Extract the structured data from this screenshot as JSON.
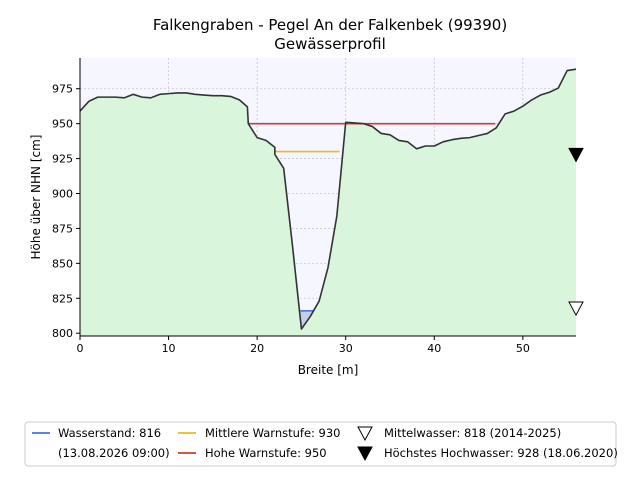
{
  "chart_data": {
    "type": "area",
    "title": "Falkengraben - Pegel An der Falkenbek (99390)",
    "subtitle": "Gewässerprofil",
    "xlabel": "Breite [m]",
    "ylabel": "Höhe über NHN [cm]",
    "xlim": [
      0,
      56
    ],
    "ylim": [
      798,
      997
    ],
    "xticks": [
      0,
      10,
      20,
      30,
      40,
      50
    ],
    "yticks": [
      800,
      825,
      850,
      875,
      900,
      925,
      950,
      975
    ],
    "grid": true,
    "colors": {
      "ground_fill": "#d9f5dc",
      "air_fill": "#f5f6ff",
      "profile_line": "#333333",
      "water_fill": "#c3ceee",
      "water_line": "#4a72d8",
      "warn_mid": "#f0b81a",
      "warn_high": "#d43a30"
    },
    "profile": {
      "x": [
        0,
        1,
        2,
        3,
        4,
        5,
        6,
        7,
        8,
        9,
        10,
        11,
        12,
        13,
        14,
        15,
        16,
        17,
        18,
        18.9,
        19,
        20,
        21,
        22,
        22,
        23,
        24,
        25,
        26,
        27,
        28,
        29,
        30,
        31,
        32,
        33,
        34,
        35,
        36,
        37,
        38,
        39,
        40,
        41,
        42,
        43,
        44,
        45,
        46,
        47,
        47.5,
        48,
        49,
        50,
        51,
        52,
        53,
        54,
        55,
        56
      ],
      "y": [
        959,
        966,
        969,
        969,
        969,
        968.5,
        971,
        969,
        968.5,
        971,
        971.5,
        972,
        972,
        971,
        970.5,
        970,
        970,
        969.5,
        967,
        962,
        950,
        940,
        938,
        933,
        928,
        918,
        862,
        803,
        812,
        823,
        847,
        884,
        951,
        950.5,
        950,
        948,
        943,
        942,
        938,
        937,
        932,
        934,
        934,
        937,
        938.5,
        939.5,
        940,
        941.5,
        943,
        947,
        952,
        957,
        959,
        962.5,
        967,
        970.5,
        972.5,
        975.5,
        988,
        989
      ]
    },
    "series": [
      {
        "name": "Wasserstand: 816",
        "kind": "water_level",
        "value": 816,
        "x_range": [
          24.9,
          26.4
        ]
      },
      {
        "name": "Mittlere Warnstufe: 930",
        "kind": "warn_mid",
        "value": 930,
        "x_range": [
          22.0,
          29.3
        ]
      },
      {
        "name": "Hohe Warnstufe: 950",
        "kind": "warn_high",
        "value": 950,
        "x_range": [
          19.0,
          46.9
        ]
      }
    ],
    "markers": [
      {
        "name": "Mittelwasser: 818 (2014-2025)",
        "value": 818,
        "x": 56,
        "style": "hollow-triangle-down"
      },
      {
        "name": "Höchstes Hochwasser: 928 (18.06.2020)",
        "value": 928,
        "x": 56,
        "style": "filled-triangle-down"
      }
    ],
    "legend": {
      "placement": "bottom-center",
      "entries": [
        {
          "label": "Wasserstand: 816",
          "sublabel": "(13.08.2026 09:00)",
          "symbol": "line",
          "color": "#4a72d8"
        },
        {
          "label": "Mittlere Warnstufe: 930",
          "symbol": "line",
          "color": "#f0b81a"
        },
        {
          "label": "Hohe Warnstufe: 950",
          "symbol": "line",
          "color": "#d43a30"
        },
        {
          "label": "Mittelwasser: 818 (2014-2025)",
          "symbol": "hollow-triangle-down",
          "color": "#000000"
        },
        {
          "label": "Höchstes Hochwasser: 928 (18.06.2020)",
          "symbol": "filled-triangle-down",
          "color": "#000000"
        }
      ]
    }
  }
}
